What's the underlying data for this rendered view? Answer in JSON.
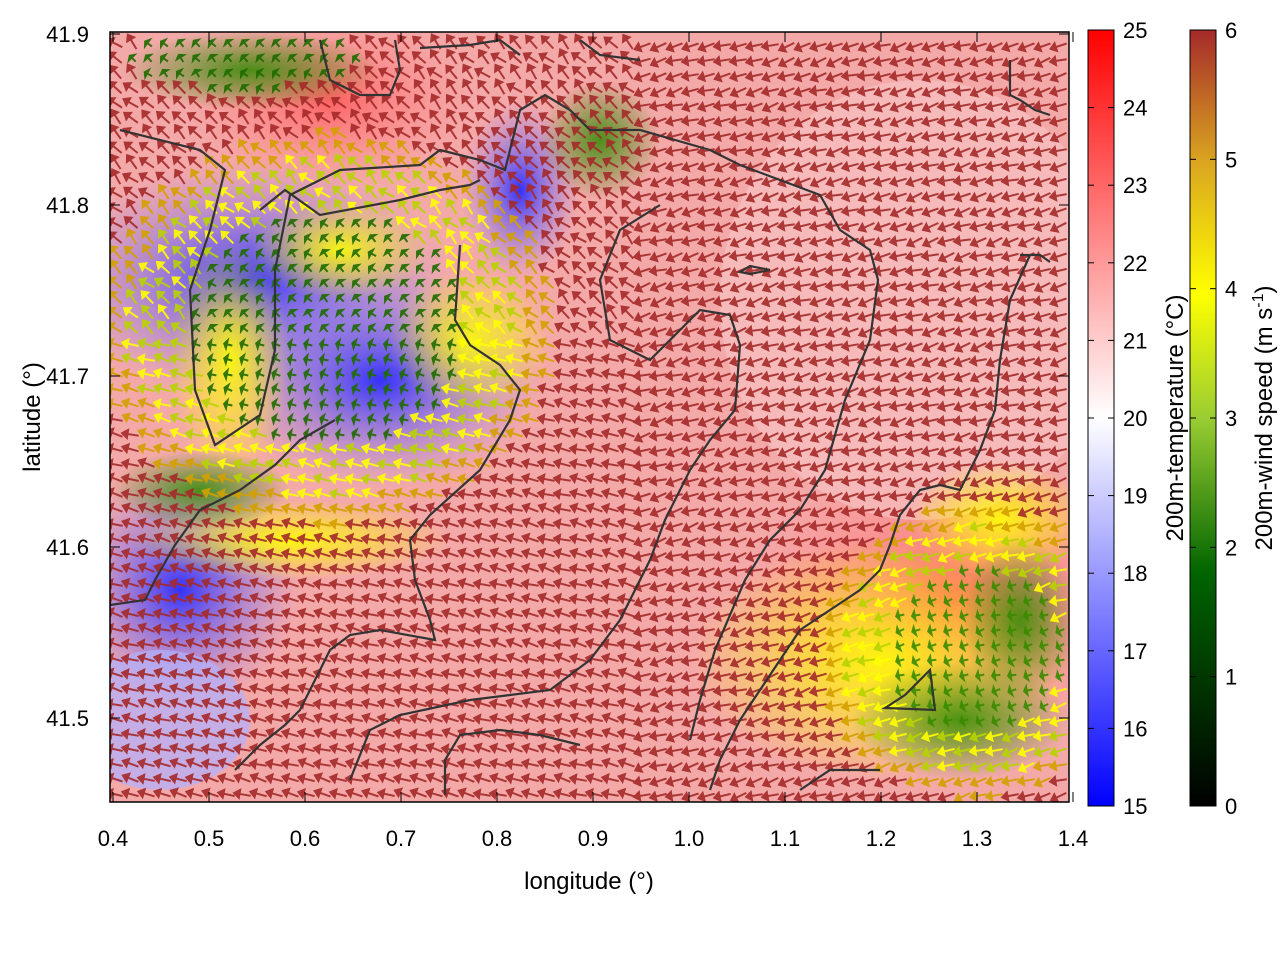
{
  "map": {
    "xlabel": "longitude (°)",
    "ylabel": "latitude (°)",
    "xlim": [
      0.4,
      1.4
    ],
    "ylim": [
      41.45,
      41.9
    ],
    "xticks": [
      "0.4",
      "0.5",
      "0.6",
      "0.7",
      "0.8",
      "0.9",
      "1.0",
      "1.1",
      "1.2",
      "1.3",
      "1.4"
    ],
    "yticks": [
      "41.5",
      "41.6",
      "41.7",
      "41.8",
      "41.9"
    ],
    "layers": {
      "fill": "200m-temperature",
      "vectors": "200m-wind speed",
      "contours": "terrain/coastline"
    }
  },
  "colorbars": [
    {
      "label": "200m-temperature (°C)",
      "range": [
        15,
        25
      ],
      "ticks": [
        "15",
        "16",
        "17",
        "18",
        "19",
        "20",
        "21",
        "22",
        "23",
        "24",
        "25"
      ],
      "colors": [
        "#0000ff",
        "#ffffff",
        "#ff0000"
      ]
    },
    {
      "label_main": "200m-wind speed (m s",
      "label_sup": "-1",
      "label_end": ")",
      "range": [
        0,
        6
      ],
      "ticks": [
        "0",
        "1",
        "2",
        "3",
        "4",
        "5",
        "6"
      ],
      "colors": [
        "#000000",
        "#006400",
        "#9acd32",
        "#ffff00",
        "#daa520",
        "#a52a2a"
      ]
    }
  ]
}
